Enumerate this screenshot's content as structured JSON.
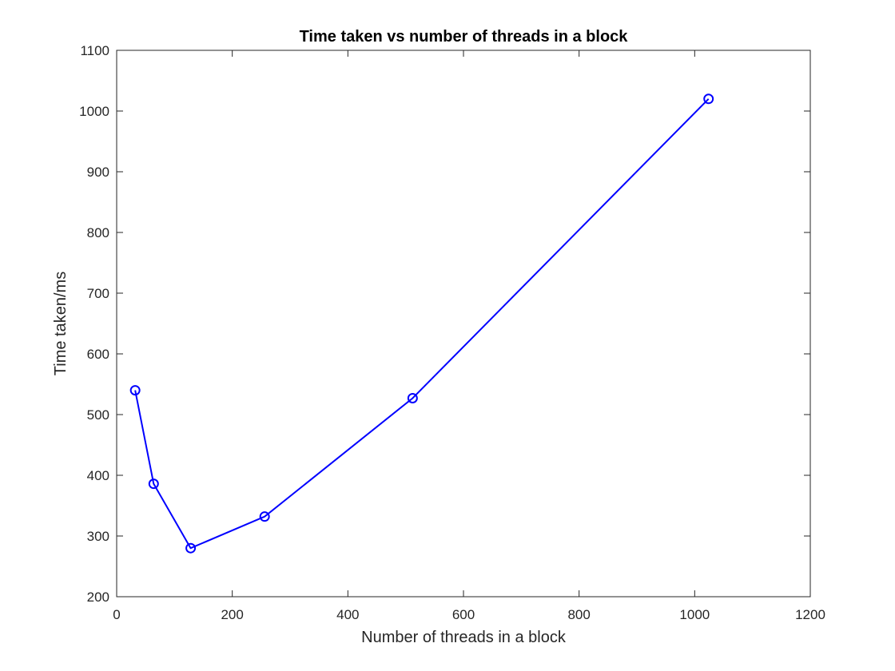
{
  "chart_data": {
    "type": "line",
    "title": "Time taken vs number of threads in a block",
    "xlabel": "Number of threads in a block",
    "ylabel": "Time taken/ms",
    "xlim": [
      0,
      1200
    ],
    "ylim": [
      200,
      1100
    ],
    "xticks": [
      0,
      200,
      400,
      600,
      800,
      1000,
      1200
    ],
    "yticks": [
      200,
      300,
      400,
      500,
      600,
      700,
      800,
      900,
      1000,
      1100
    ],
    "grid": false,
    "legend": "none",
    "series": [
      {
        "color": "#0000ff",
        "marker": "circle",
        "x": [
          32,
          64,
          128,
          256,
          512,
          1024
        ],
        "y": [
          540,
          386,
          280,
          332,
          527,
          1020
        ]
      }
    ]
  }
}
